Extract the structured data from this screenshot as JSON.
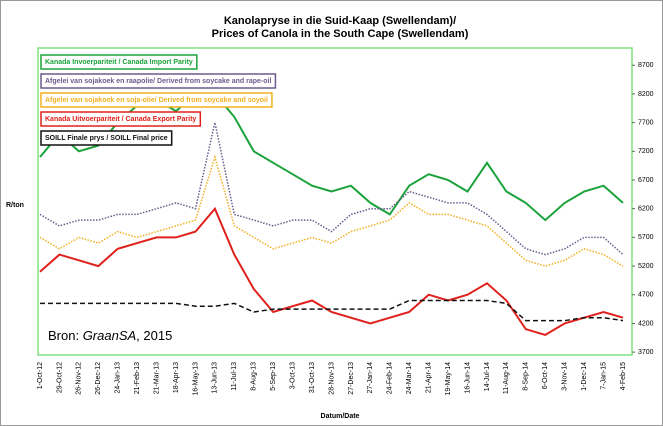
{
  "chart_data": {
    "type": "line",
    "title": "Kanolapryse in die Suid-Kaap (Swellendam)/",
    "subtitle": "Prices of Canola in the South Cape (Swellendam)",
    "y_label": "R/ton",
    "x_label": "Datum/Date",
    "source": {
      "prefix": "Bron: ",
      "name": "GraanSA",
      "suffix": ", 2015"
    },
    "categories": [
      "1-Oct-12",
      "29-Oct-12",
      "26-Nov-12",
      "26-Dec-12",
      "24-Jan-13",
      "21-Feb-13",
      "21-Mar-13",
      "18-Apr-13",
      "16-May-13",
      "13-Jun-13",
      "11-Jul-13",
      "8-Aug-13",
      "5-Sep-13",
      "3-Oct-13",
      "31-Oct-13",
      "28-Nov-13",
      "27-Dec-13",
      "27-Jan-14",
      "24-Feb-14",
      "24-Mar-14",
      "21-Apr-14",
      "19-May-14",
      "16-Jun-14",
      "14-Jul-14",
      "11-Aug-14",
      "8-Sep-14",
      "6-Oct-14",
      "3-Nov-14",
      "1-Dec-14",
      "7-Jan-15",
      "4-Feb-15"
    ],
    "ylim": [
      3650,
      9000
    ],
    "yticks": [
      3700,
      4200,
      4700,
      5200,
      5700,
      6200,
      6700,
      7200,
      7700,
      8200,
      8700
    ],
    "series": [
      {
        "name": "Kanada Invoerpariteit / Canada Import Parity",
        "color": "#1aa33a",
        "style": "solid",
        "values": [
          7100,
          7500,
          7200,
          7300,
          7700,
          8000,
          8100,
          7900,
          8200,
          8200,
          7800,
          7200,
          7000,
          6800,
          6600,
          6500,
          6600,
          6300,
          6100,
          6600,
          6800,
          6700,
          6500,
          7000,
          6500,
          6300,
          6000,
          6300,
          6500,
          6600,
          6300
        ]
      },
      {
        "name": "Afgelei van sojakoek en raapolie/ Derived from soycake and rape-oil",
        "color": "#6b5b8c",
        "style": "dotted",
        "values": [
          6100,
          5900,
          6000,
          6000,
          6100,
          6100,
          6200,
          6300,
          6200,
          7700,
          6100,
          6000,
          5900,
          6000,
          6000,
          5800,
          6100,
          6200,
          6200,
          6500,
          6400,
          6300,
          6300,
          6100,
          5800,
          5500,
          5400,
          5500,
          5700,
          5700,
          5400
        ]
      },
      {
        "name": "Afgelei van sojakoek en soja-olie/ Derived from soycake and soyoil",
        "color": "#f2b01e",
        "style": "dotted",
        "values": [
          5700,
          5500,
          5700,
          5600,
          5800,
          5700,
          5800,
          5900,
          6000,
          7100,
          5900,
          5700,
          5500,
          5600,
          5700,
          5600,
          5800,
          5900,
          6000,
          6300,
          6100,
          6100,
          6000,
          5900,
          5600,
          5300,
          5200,
          5300,
          5500,
          5400,
          5200
        ]
      },
      {
        "name": "Kanada Uitvoerpariteit / Canada Export Parity",
        "color": "#e0201b",
        "style": "solid",
        "values": [
          5100,
          5400,
          5300,
          5200,
          5500,
          5600,
          5700,
          5700,
          5800,
          6200,
          5400,
          4800,
          4400,
          4500,
          4600,
          4400,
          4300,
          4200,
          4300,
          4400,
          4700,
          4600,
          4700,
          4900,
          4600,
          4100,
          4000,
          4200,
          4300,
          4400,
          4300
        ]
      },
      {
        "name": "SOILL Finale prys / SOILL Final price",
        "color": "#111111",
        "style": "dashed",
        "values": [
          4550,
          4550,
          4550,
          4550,
          4550,
          4550,
          4550,
          4550,
          4500,
          4500,
          4550,
          4400,
          4450,
          4450,
          4450,
          4450,
          4450,
          4450,
          4450,
          4600,
          4600,
          4600,
          4600,
          4600,
          4550,
          4250,
          4250,
          4250,
          4300,
          4300,
          4250
        ]
      }
    ]
  }
}
